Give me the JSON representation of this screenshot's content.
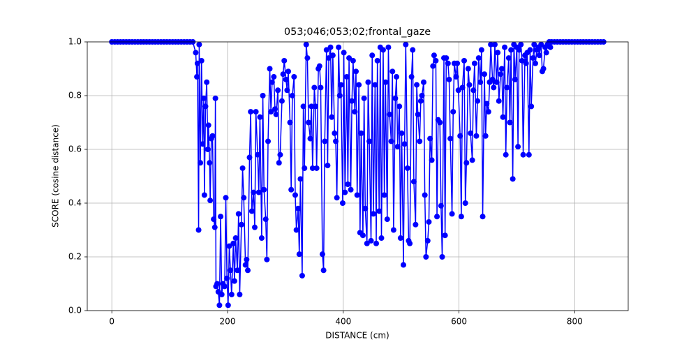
{
  "chart_data": {
    "type": "line",
    "title": "053;046;053;02;frontal_gaze",
    "x_label": "DISTANCE (cm)",
    "y_label": "SCORE (cosine distance)",
    "x": [
      0,
      5,
      10,
      15,
      20,
      25,
      30,
      35,
      40,
      45,
      50,
      55,
      60,
      65,
      70,
      75,
      80,
      85,
      90,
      95,
      100,
      105,
      110,
      115,
      120,
      125,
      130,
      135,
      140,
      145,
      147,
      148,
      150,
      151,
      153,
      155,
      157,
      159,
      160,
      162,
      164,
      166,
      167,
      169,
      170,
      172,
      174,
      176,
      178,
      179,
      180,
      182,
      184,
      186,
      188,
      190,
      192,
      195,
      197,
      199,
      201,
      203,
      205,
      207,
      210,
      212,
      214,
      217,
      219,
      221,
      224,
      226,
      228,
      231,
      233,
      235,
      238,
      240,
      242,
      245,
      247,
      249,
      252,
      254,
      256,
      259,
      261,
      263,
      266,
      268,
      270,
      273,
      275,
      277,
      280,
      282,
      284,
      287,
      289,
      291,
      294,
      296,
      298,
      301,
      303,
      305,
      308,
      310,
      312,
      315,
      317,
      319,
      322,
      324,
      326,
      329,
      331,
      333,
      336,
      338,
      340,
      343,
      345,
      347,
      350,
      352,
      354,
      357,
      359,
      361,
      364,
      366,
      368,
      371,
      373,
      375,
      378,
      380,
      382,
      385,
      387,
      389,
      392,
      394,
      396,
      399,
      401,
      403,
      406,
      408,
      410,
      413,
      415,
      417,
      420,
      422,
      424,
      427,
      429,
      431,
      434,
      436,
      438,
      441,
      443,
      445,
      448,
      450,
      452,
      455,
      457,
      459,
      462,
      464,
      466,
      469,
      471,
      473,
      476,
      478,
      480,
      483,
      485,
      487,
      490,
      492,
      494,
      497,
      499,
      501,
      504,
      506,
      508,
      511,
      513,
      515,
      518,
      520,
      522,
      525,
      527,
      529,
      532,
      534,
      536,
      539,
      541,
      543,
      546,
      548,
      550,
      553,
      555,
      557,
      560,
      562,
      564,
      567,
      569,
      571,
      574,
      576,
      578,
      581,
      583,
      585,
      588,
      590,
      592,
      595,
      597,
      599,
      602,
      604,
      606,
      609,
      611,
      613,
      616,
      618,
      620,
      623,
      625,
      627,
      630,
      632,
      634,
      637,
      639,
      641,
      644,
      646,
      648,
      651,
      653,
      655,
      658,
      660,
      662,
      665,
      667,
      669,
      672,
      674,
      676,
      679,
      681,
      683,
      686,
      688,
      690,
      693,
      695,
      697,
      700,
      702,
      704,
      707,
      709,
      711,
      714,
      716,
      718,
      721,
      723,
      725,
      728,
      730,
      732,
      735,
      737,
      739,
      742,
      744,
      746,
      749,
      751,
      753,
      756,
      758,
      760,
      765,
      770,
      775,
      780,
      785,
      790,
      795,
      800,
      805,
      810,
      815,
      820,
      825,
      830,
      835,
      840,
      845,
      850
    ],
    "series": [
      {
        "name": "score",
        "color": "#0000ff",
        "values": [
          1,
          1,
          1,
          1,
          1,
          1,
          1,
          1,
          1,
          1,
          1,
          1,
          1,
          1,
          1,
          1,
          1,
          1,
          1,
          1,
          1,
          1,
          1,
          1,
          1,
          1,
          1,
          1,
          1,
          0.96,
          0.87,
          0.92,
          0.3,
          0.99,
          0.55,
          0.93,
          0.62,
          0.79,
          0.43,
          0.76,
          0.85,
          0.6,
          0.69,
          0.55,
          0.41,
          0.64,
          0.65,
          0.34,
          0.31,
          0.79,
          0.09,
          0.1,
          0.07,
          0.02,
          0.35,
          0.06,
          0.1,
          0.09,
          0.42,
          0.12,
          0.02,
          0.24,
          0.15,
          0.06,
          0.25,
          0.11,
          0.27,
          0.15,
          0.36,
          0.06,
          0.32,
          0.53,
          0.42,
          0.17,
          0.19,
          0.15,
          0.57,
          0.74,
          0.37,
          0.44,
          0.31,
          0.74,
          0.58,
          0.44,
          0.72,
          0.27,
          0.8,
          0.45,
          0.34,
          0.19,
          0.63,
          0.9,
          0.74,
          0.85,
          0.87,
          0.75,
          0.73,
          0.82,
          0.55,
          0.58,
          0.78,
          0.88,
          0.93,
          0.86,
          0.82,
          0.89,
          0.7,
          0.45,
          0.8,
          0.87,
          0.43,
          0.3,
          0.38,
          0.21,
          0.49,
          0.13,
          0.76,
          0.53,
          0.99,
          0.94,
          0.7,
          0.64,
          0.76,
          0.53,
          0.83,
          0.76,
          0.53,
          0.9,
          0.91,
          0.83,
          0.21,
          0.15,
          0.63,
          0.97,
          0.54,
          0.94,
          0.98,
          0.72,
          0.95,
          0.66,
          0.63,
          0.42,
          0.98,
          0.8,
          0.84,
          0.4,
          0.96,
          0.44,
          0.87,
          0.47,
          0.94,
          0.45,
          0.78,
          0.93,
          0.74,
          0.89,
          0.43,
          0.84,
          0.29,
          0.66,
          0.28,
          0.79,
          0.38,
          0.25,
          0.85,
          0.63,
          0.26,
          0.95,
          0.36,
          0.84,
          0.25,
          0.93,
          0.37,
          0.98,
          0.27,
          0.97,
          0.43,
          0.85,
          0.34,
          0.98,
          0.73,
          0.63,
          0.89,
          0.3,
          0.79,
          0.87,
          0.61,
          0.76,
          0.27,
          0.66,
          0.17,
          0.62,
          0.99,
          0.53,
          0.26,
          0.25,
          0.87,
          0.97,
          0.48,
          0.32,
          0.84,
          0.73,
          0.63,
          0.78,
          0.8,
          0.85,
          0.43,
          0.2,
          0.26,
          0.33,
          0.64,
          0.56,
          0.91,
          0.95,
          0.93,
          0.35,
          0.71,
          0.7,
          0.39,
          0.2,
          0.94,
          0.28,
          0.94,
          0.92,
          0.86,
          0.64,
          0.36,
          0.74,
          0.92,
          0.87,
          0.92,
          0.82,
          0.65,
          0.35,
          0.83,
          0.93,
          0.4,
          0.55,
          0.9,
          0.84,
          0.66,
          0.56,
          0.82,
          0.92,
          0.65,
          0.78,
          0.94,
          0.85,
          0.97,
          0.35,
          0.88,
          0.65,
          0.77,
          0.74,
          0.85,
          0.99,
          0.86,
          0.83,
          0.99,
          0.85,
          0.96,
          0.78,
          0.88,
          0.9,
          0.72,
          0.98,
          0.58,
          0.83,
          0.94,
          0.7,
          0.97,
          0.49,
          0.99,
          0.86,
          0.98,
          0.61,
          0.97,
          0.99,
          0.93,
          0.58,
          0.95,
          0.92,
          0.96,
          0.58,
          0.97,
          0.76,
          0.94,
          0.99,
          0.92,
          0.97,
          0.98,
          0.95,
          0.99,
          0.89,
          0.9,
          0.98,
          0.96,
          0.99,
          1,
          0.98,
          1,
          1,
          1,
          1,
          1,
          1,
          1,
          1,
          1,
          1,
          1,
          1,
          1,
          1,
          1,
          1,
          1,
          1,
          1
        ]
      }
    ],
    "xlim": [
      -42.5,
      892.5
    ],
    "ylim": [
      0,
      1
    ],
    "xticks": [
      0,
      200,
      400,
      600,
      800
    ],
    "yticks": [
      {
        "value": 0,
        "label": "0.0"
      },
      0.2,
      0.4,
      0.6,
      0.8,
      {
        "value": 1,
        "label": "1.0"
      }
    ],
    "grid": true
  }
}
